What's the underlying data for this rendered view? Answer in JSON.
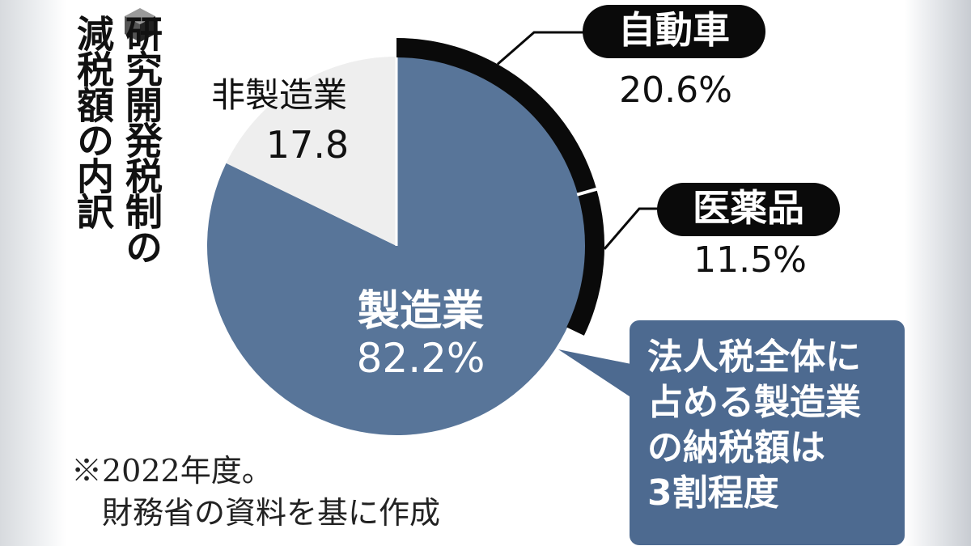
{
  "title_lines": [
    "研究開発税制の",
    "減税額の内訳"
  ],
  "chart_data": {
    "type": "pie",
    "slices": [
      {
        "label": "製造業",
        "value": 82.2,
        "display": "82.2%",
        "color": "#587599"
      },
      {
        "label": "非製造業",
        "value": 17.8,
        "display": "17.8",
        "color": "#eeeeee"
      }
    ],
    "sub_segments_of_manufacturing": [
      {
        "label": "自動車",
        "value": 20.6,
        "display": "20.6%",
        "color": "#0a0a0a"
      },
      {
        "label": "医薬品",
        "value": 11.5,
        "display": "11.5%",
        "color": "#0a0a0a"
      }
    ]
  },
  "callout_text": "法人税全体に\n占める製造業\nの納税額は\n3割程度",
  "note_text": "※2022年度。\n　財務省の資料を基に作成"
}
